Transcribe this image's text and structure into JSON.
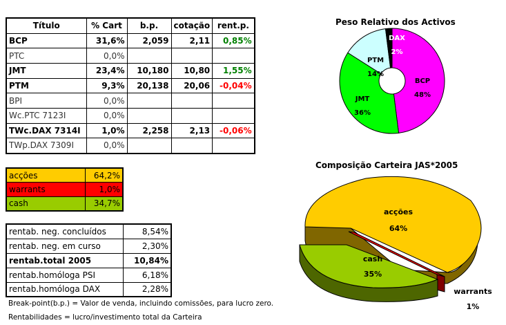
{
  "holdings_table": {
    "headers": [
      "Título",
      "% Cart",
      "b.p.",
      "cotação",
      "rent.p."
    ],
    "rows": [
      {
        "titulo": "BCP",
        "cart": "31,6%",
        "bp": "2,059",
        "cotacao": "2,11",
        "rent": "0,85%",
        "bold": true,
        "rent_sign": "pos"
      },
      {
        "titulo": "PTC",
        "cart": "0,0%",
        "bp": "",
        "cotacao": "",
        "rent": "",
        "bold": false,
        "rent_sign": ""
      },
      {
        "titulo": "JMT",
        "cart": "23,4%",
        "bp": "10,180",
        "cotacao": "10,80",
        "rent": "1,55%",
        "bold": true,
        "rent_sign": "pos"
      },
      {
        "titulo": "PTM",
        "cart": "9,3%",
        "bp": "20,138",
        "cotacao": "20,06",
        "rent": "-0,04%",
        "bold": true,
        "rent_sign": "neg"
      },
      {
        "titulo": "BPI",
        "cart": "0,0%",
        "bp": "",
        "cotacao": "",
        "rent": "",
        "bold": false,
        "rent_sign": ""
      },
      {
        "titulo": "Wc.PTC 7123I",
        "cart": "0,0%",
        "bp": "",
        "cotacao": "",
        "rent": "",
        "bold": false,
        "rent_sign": ""
      },
      {
        "titulo": "TWc.DAX 7314I",
        "cart": "1,0%",
        "bp": "2,258",
        "cotacao": "2,13",
        "rent": "-0,06%",
        "bold": true,
        "rent_sign": "neg"
      },
      {
        "titulo": "TWp.DAX 7309I",
        "cart": "0,0%",
        "bp": "",
        "cotacao": "",
        "rent": "",
        "bold": false,
        "rent_sign": ""
      }
    ]
  },
  "allocation_table": {
    "rows": [
      {
        "label": "acções",
        "value": "64,2%",
        "color": "#ffcc00"
      },
      {
        "label": "warrants",
        "value": "1,0%",
        "color": "#ff0000"
      },
      {
        "label": "cash",
        "value": "34,7%",
        "color": "#99cc00"
      }
    ]
  },
  "returns_table": {
    "rows": [
      {
        "label": "rentab. neg. concluídos",
        "value": "8,54%",
        "bold": false
      },
      {
        "label": "rentab. neg. em curso",
        "value": "2,30%",
        "bold": false
      },
      {
        "label": "rentab.total 2005",
        "value": "10,84%",
        "bold": true
      },
      {
        "label": "rentab.homóloga PSI",
        "value": "6,18%",
        "bold": false
      },
      {
        "label": "rentab.homóloga DAX",
        "value": "2,28%",
        "bold": false
      }
    ]
  },
  "notes": {
    "breakpoint": "Break-point(b.p.) = Valor de venda, incluindo comissões, para lucro zero.",
    "rentabilidades": "Rentabilidades = lucro/investimento total da Carteira"
  },
  "chart_data": [
    {
      "type": "pie",
      "subtype": "doughnut",
      "title": "Peso Relativo dos Activos",
      "categories": [
        "BCP",
        "JMT",
        "PTM",
        "DAX"
      ],
      "values": [
        48,
        36,
        14,
        2
      ],
      "labels": [
        "48%",
        "36%",
        "14%",
        "2%"
      ],
      "colors": [
        "#ff00ff",
        "#00ff00",
        "#ccffff",
        "#000000"
      ],
      "legend": "none (data labels on slices)"
    },
    {
      "type": "pie",
      "subtype": "3d-exploded",
      "title": "Composição Carteira JAS*2005",
      "categories": [
        "acções",
        "cash",
        "warrants"
      ],
      "values": [
        64,
        35,
        1
      ],
      "labels": [
        "64%",
        "35%",
        "1%"
      ],
      "colors": [
        "#ffcc00",
        "#99cc00",
        "#ff0000"
      ],
      "legend": "none (data labels on slices)"
    }
  ]
}
